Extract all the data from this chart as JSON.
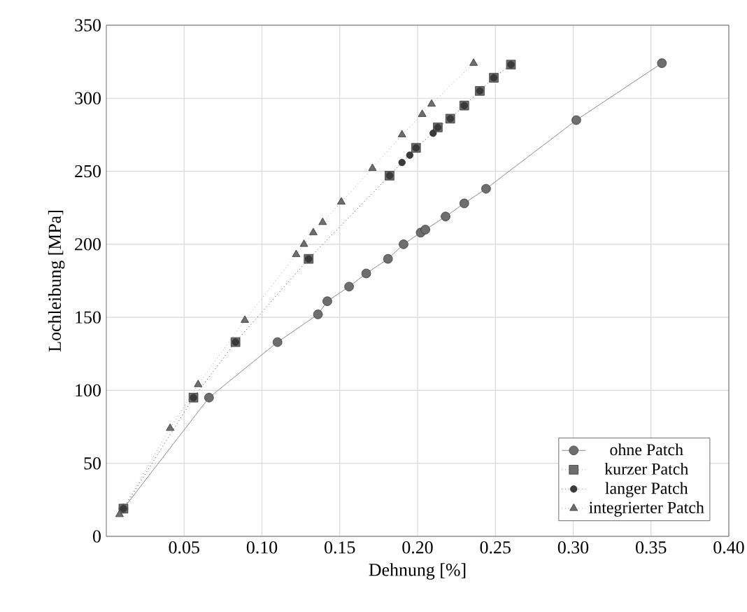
{
  "chart_data": {
    "type": "line",
    "xlabel": "Dehnung [%]",
    "ylabel": "Lochleibung [MPa]",
    "xlim": [
      0,
      0.4
    ],
    "ylim": [
      0,
      350
    ],
    "xticks": [
      {
        "value": 0.05,
        "label": "0.05"
      },
      {
        "value": 0.1,
        "label": "0.10"
      },
      {
        "value": 0.15,
        "label": "0.15"
      },
      {
        "value": 0.2,
        "label": "0.20"
      },
      {
        "value": 0.25,
        "label": "0.25"
      },
      {
        "value": 0.3,
        "label": "0.30"
      },
      {
        "value": 0.35,
        "label": "0.35"
      },
      {
        "value": 0.4,
        "label": "0.40"
      }
    ],
    "yticks": [
      0,
      50,
      100,
      150,
      200,
      250,
      300,
      350
    ],
    "grid": true,
    "legend": "bottom right",
    "series": [
      {
        "name": "ohne Patch",
        "color": "#6e6e6e",
        "marker": "circle",
        "line_style": "solid",
        "x": [
          0.011,
          0.066,
          0.11,
          0.136,
          0.142,
          0.156,
          0.167,
          0.181,
          0.191,
          0.202,
          0.205,
          0.218,
          0.23,
          0.244,
          0.302,
          0.357
        ],
        "values": [
          19,
          95,
          133,
          152,
          161,
          171,
          180,
          190,
          200,
          208,
          210,
          219,
          228,
          238,
          285,
          324
        ]
      },
      {
        "name": "kurzer Patch",
        "color": "#6e6e6e",
        "marker": "square",
        "line_style": "dotted",
        "x": [
          0.011,
          0.056,
          0.083,
          0.13,
          0.182,
          0.199,
          0.213,
          0.221,
          0.23,
          0.24,
          0.249,
          0.26
        ],
        "values": [
          19,
          95,
          133,
          190,
          247,
          266,
          280,
          286,
          295,
          305,
          314,
          323
        ]
      },
      {
        "name": "langer Patch",
        "color": "#3a3a3a",
        "marker": "circle",
        "line_style": "dotted",
        "x": [
          0.011,
          0.056,
          0.083,
          0.13,
          0.182,
          0.19,
          0.195,
          0.199,
          0.21,
          0.213,
          0.221,
          0.23,
          0.24,
          0.249,
          0.26
        ],
        "values": [
          19,
          95,
          133,
          190,
          247,
          256,
          261,
          266,
          276,
          280,
          286,
          295,
          305,
          314,
          323
        ]
      },
      {
        "name": "integrierter Patch",
        "color": "#6e6e6e",
        "marker": "triangle",
        "line_style": "dotted",
        "x": [
          0.0085,
          0.041,
          0.059,
          0.089,
          0.122,
          0.127,
          0.133,
          0.139,
          0.151,
          0.171,
          0.19,
          0.203,
          0.209,
          0.236
        ],
        "values": [
          15,
          74,
          104,
          148,
          193,
          200,
          208,
          215,
          229,
          252,
          275,
          289,
          296,
          324
        ]
      }
    ]
  }
}
